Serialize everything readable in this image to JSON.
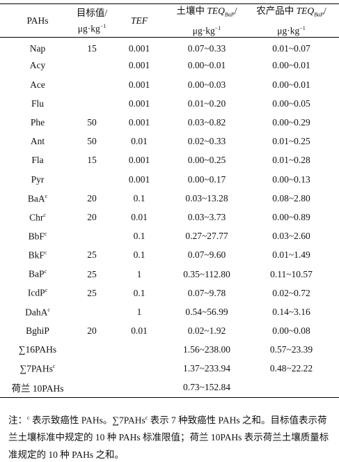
{
  "table": {
    "header": [
      {
        "line1": [
          {
            "text": "PAHs"
          }
        ]
      },
      {
        "line1": [
          {
            "text": "目标值/"
          }
        ],
        "line2": [
          {
            "text": "μg·kg"
          },
          {
            "text": "−1",
            "style": "sup"
          }
        ]
      },
      {
        "line1": [
          {
            "text": "TEF",
            "style": "italic"
          }
        ]
      },
      {
        "line1": [
          {
            "text": "土壤中 "
          },
          {
            "text": "TEQ",
            "style": "italic"
          },
          {
            "text": "BaP",
            "style": "sub"
          },
          {
            "text": "/"
          }
        ],
        "line2": [
          {
            "text": "μg·kg"
          },
          {
            "text": "−1",
            "style": "sup"
          }
        ]
      },
      {
        "line1": [
          {
            "text": "农产品中 "
          },
          {
            "text": "TEQ",
            "style": "italic"
          },
          {
            "text": "BaP",
            "style": "sub"
          },
          {
            "text": "/"
          }
        ],
        "line2": [
          {
            "text": "μg·kg"
          },
          {
            "text": "−1",
            "style": "sup"
          }
        ]
      }
    ],
    "rows": [
      {
        "name": [
          {
            "text": "Nap"
          }
        ],
        "target": "15",
        "tef": "0.001",
        "soil": "0.07~0.33",
        "crop": "0.01~0.07"
      },
      {
        "name": [
          {
            "text": "Acy"
          }
        ],
        "tef": "0.001",
        "soil": "0.00~0.01",
        "crop": "0.00~0.01"
      },
      {
        "name": [
          {
            "text": "Ace"
          }
        ],
        "tef": "0.001",
        "soil": "0.00~0.03",
        "crop": "0.00~0.01"
      },
      {
        "name": [
          {
            "text": "Flu"
          }
        ],
        "tef": "0.001",
        "soil": "0.01~0.20",
        "crop": "0.00~0.05"
      },
      {
        "name": [
          {
            "text": "Phe"
          }
        ],
        "target": "50",
        "tef": "0.001",
        "soil": "0.03~0.82",
        "crop": "0.00~0.29"
      },
      {
        "name": [
          {
            "text": "Ant"
          }
        ],
        "target": "50",
        "tef": "0.01",
        "soil": "0.02~0.33",
        "crop": "0.01~0.25"
      },
      {
        "name": [
          {
            "text": "Fla"
          }
        ],
        "target": "15",
        "tef": "0.001",
        "soil": "0.00~0.25",
        "crop": "0.01~0.28"
      },
      {
        "name": [
          {
            "text": "Pyr"
          }
        ],
        "tef": "0.001",
        "soil": "0.00~0.17",
        "crop": "0.00~0.13"
      },
      {
        "name": [
          {
            "text": "BaA"
          },
          {
            "text": "c",
            "style": "sup"
          }
        ],
        "target": "20",
        "tef": "0.1",
        "soil": "0.03~13.28",
        "crop": "0.08~2.80"
      },
      {
        "name": [
          {
            "text": "Chr"
          },
          {
            "text": "c",
            "style": "sup"
          }
        ],
        "target": "20",
        "tef": "0.01",
        "soil": "0.03~3.73",
        "crop": "0.00~0.89"
      },
      {
        "name": [
          {
            "text": "BbF"
          },
          {
            "text": "c",
            "style": "sup"
          }
        ],
        "tef": "0.1",
        "soil": "0.27~27.77",
        "crop": "0.03~2.60"
      },
      {
        "name": [
          {
            "text": "BkF"
          },
          {
            "text": "c",
            "style": "sup"
          }
        ],
        "target": "25",
        "tef": "0.1",
        "soil": "0.07~9.60",
        "crop": "0.01~1.49"
      },
      {
        "name": [
          {
            "text": "BaP"
          },
          {
            "text": "c",
            "style": "sup"
          }
        ],
        "target": "25",
        "tef": "1",
        "soil": "0.35~112.80",
        "crop": "0.11~10.57"
      },
      {
        "name": [
          {
            "text": "IcdP"
          },
          {
            "text": "c",
            "style": "sup"
          }
        ],
        "target": "25",
        "tef": "0.1",
        "soil": "0.07~9.78",
        "crop": "0.02~0.72"
      },
      {
        "name": [
          {
            "text": "DahA"
          },
          {
            "text": "c",
            "style": "sup"
          }
        ],
        "tef": "1",
        "soil": "0.54~56.99",
        "crop": "0.14~3.16"
      },
      {
        "name": [
          {
            "text": "BghiP"
          }
        ],
        "target": "20",
        "tef": "0.01",
        "soil": "0.02~1.92",
        "crop": "0.00~0.08"
      },
      {
        "name": [
          {
            "text": "∑16PAHs"
          }
        ],
        "soil": "1.56~238.00",
        "crop": "0.57~23.39"
      },
      {
        "name": [
          {
            "text": "∑7PAHs"
          },
          {
            "text": "c",
            "style": "sup"
          }
        ],
        "soil": "1.37~233.94",
        "crop": "0.48~22.22"
      },
      {
        "name": [
          {
            "text": "荷兰 10PAHs"
          }
        ],
        "soil": "0.73~152.84"
      }
    ]
  },
  "note": [
    {
      "text": "注："
    },
    {
      "text": "c",
      "style": "sup"
    },
    {
      "text": " 表示致癌性 PAHs。∑7PAHs"
    },
    {
      "text": "c",
      "style": "sup"
    },
    {
      "text": " 表示 7 种致癌性 PAHs 之和。目标值表示荷兰土壤标准中规定的 10 种 PAHs 标准限值；荷兰 10PAHs 表示荷兰土壤质量标准规定的 10 种 PAHs 之和。"
    }
  ]
}
